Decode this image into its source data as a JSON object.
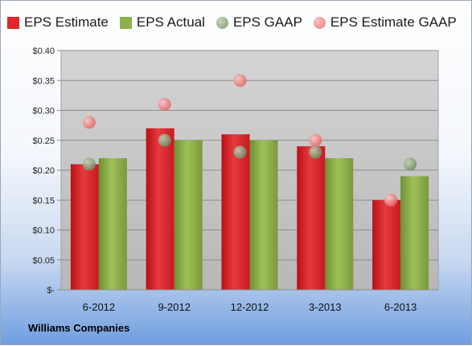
{
  "chart_data": {
    "type": "bar",
    "categories": [
      "6-2012",
      "9-2012",
      "12-2012",
      "3-2013",
      "6-2013"
    ],
    "series": [
      {
        "name": "EPS Estimate",
        "kind": "bar",
        "color": "#e0262c",
        "values": [
          0.21,
          0.27,
          0.26,
          0.24,
          0.15
        ]
      },
      {
        "name": "EPS Actual",
        "kind": "bar",
        "color": "#8fb04a",
        "values": [
          0.22,
          0.25,
          0.25,
          0.22,
          0.19
        ]
      },
      {
        "name": "EPS GAAP",
        "kind": "scatter",
        "color": "#7f9a6a",
        "values": [
          0.21,
          0.25,
          0.23,
          0.23,
          0.21
        ]
      },
      {
        "name": "EPS Estimate GAAP",
        "kind": "scatter",
        "color": "#ee7a7a",
        "values": [
          0.28,
          0.31,
          0.35,
          0.25,
          0.15
        ]
      }
    ],
    "ylim": [
      0,
      0.4
    ],
    "yticks": [
      "$-",
      "$0.05",
      "$0.10",
      "$0.15",
      "$0.20",
      "$0.25",
      "$0.30",
      "$0.35",
      "$0.40"
    ],
    "grid": true,
    "legend": "top"
  },
  "footer": {
    "company": "Williams Companies"
  }
}
